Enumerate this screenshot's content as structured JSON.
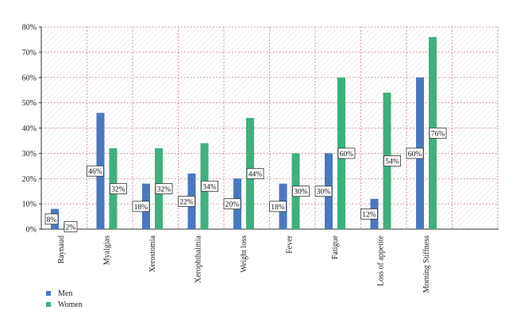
{
  "chart_data": {
    "type": "bar",
    "title": "",
    "xlabel": "",
    "ylabel": "",
    "ylim": [
      0,
      80
    ],
    "yticks": [
      "0%",
      "10%",
      "20%",
      "30%",
      "40%",
      "50%",
      "60%",
      "70%",
      "80%"
    ],
    "grid": true,
    "legend_position": "bottom-left",
    "categories": [
      "Raynaud",
      "Myalgias",
      "Xerostomia",
      "Xerophthalmia",
      "Weight loss",
      "Fever",
      "Fatigue",
      "Loss of appetite",
      "Morning Stiffness"
    ],
    "series": [
      {
        "name": "Men",
        "color": "#4a78c0",
        "values": [
          8,
          46,
          18,
          22,
          20,
          18,
          30,
          12,
          60
        ],
        "labels": [
          "8%",
          "46%",
          "18%",
          "22%",
          "20%",
          "18%",
          "30%",
          "12%",
          "60%"
        ]
      },
      {
        "name": "Women",
        "color": "#3fb07d",
        "values": [
          2,
          32,
          32,
          34,
          44,
          30,
          60,
          54,
          76
        ],
        "labels": [
          "2%",
          "32%",
          "32%",
          "34%",
          "44%",
          "30%",
          "60%",
          "54%",
          "76%"
        ]
      }
    ]
  }
}
